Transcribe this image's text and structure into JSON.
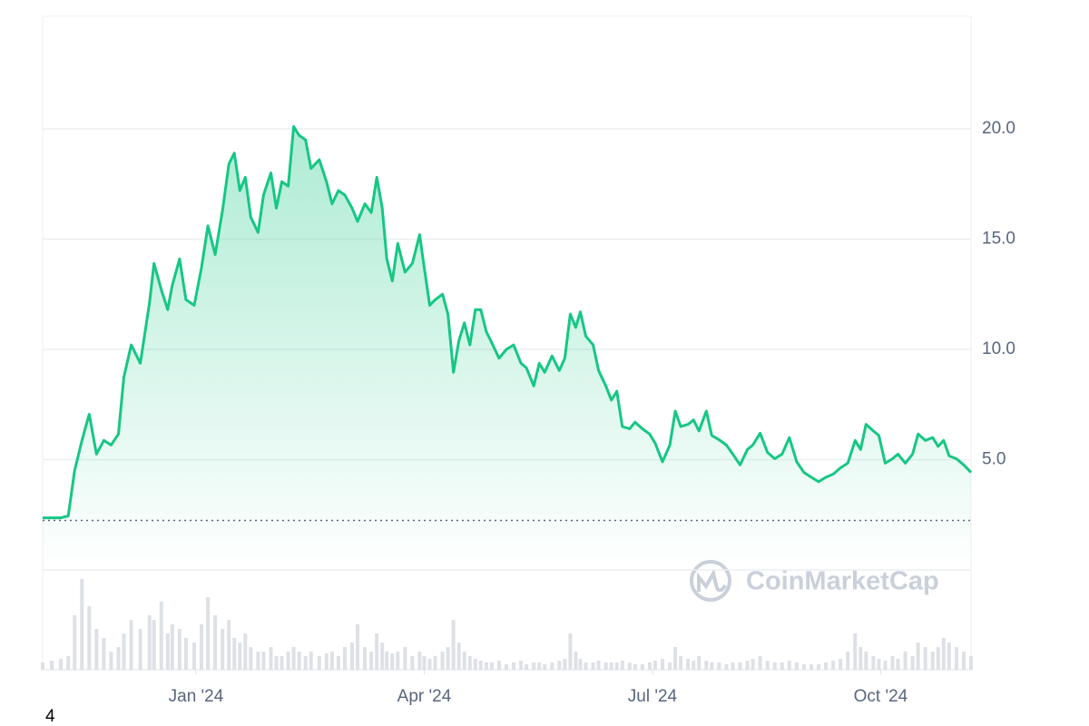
{
  "chart_data": {
    "type": "line",
    "watermark": "CoinMarketCap",
    "note": "4",
    "x": [
      2023.832,
      2023.842,
      2023.852,
      2023.86,
      2023.867,
      2023.875,
      2023.883,
      2023.891,
      2023.899,
      2023.907,
      2023.915,
      2023.921,
      2023.929,
      2023.939,
      2023.949,
      2023.954,
      2023.962,
      2023.969,
      2023.974,
      2023.982,
      2023.989,
      2023.998,
      2024.006,
      2024.013,
      2024.021,
      2024.029,
      2024.036,
      2024.042,
      2024.048,
      2024.054,
      2024.06,
      2024.068,
      2024.074,
      2024.082,
      2024.088,
      2024.094,
      2024.101,
      2024.107,
      2024.113,
      2024.12,
      2024.126,
      2024.135,
      2024.143,
      2024.149,
      2024.156,
      2024.163,
      2024.171,
      2024.177,
      2024.185,
      2024.192,
      2024.198,
      2024.204,
      2024.209,
      2024.215,
      2024.221,
      2024.229,
      2024.237,
      2024.245,
      2024.25,
      2024.256,
      2024.262,
      2024.27,
      2024.276,
      2024.282,
      2024.288,
      2024.294,
      2024.3,
      2024.306,
      2024.312,
      2024.318,
      2024.324,
      2024.332,
      2024.34,
      2024.348,
      2024.356,
      2024.362,
      2024.37,
      2024.376,
      2024.382,
      2024.39,
      2024.398,
      2024.404,
      2024.41,
      2024.416,
      2024.421,
      2024.427,
      2024.435,
      2024.441,
      2024.449,
      2024.455,
      2024.461,
      2024.467,
      2024.475,
      2024.481,
      2024.489,
      2024.497,
      2024.503,
      2024.511,
      2024.519,
      2024.525,
      2024.531,
      2024.539,
      2024.545,
      2024.551,
      2024.559,
      2024.565,
      2024.573,
      2024.581,
      2024.588,
      2024.596,
      2024.604,
      2024.61,
      2024.618,
      2024.626,
      2024.634,
      2024.642,
      2024.65,
      2024.658,
      2024.666,
      2024.674,
      2024.682,
      2024.69,
      2024.698,
      2024.706,
      2024.714,
      2024.722,
      2024.728,
      2024.734,
      2024.742,
      2024.748,
      2024.755,
      2024.763,
      2024.769,
      2024.777,
      2024.785,
      2024.791,
      2024.799,
      2024.807,
      2024.813,
      2024.819,
      2024.825,
      2024.833,
      2024.841,
      2024.849
    ],
    "series": [
      {
        "color": "#16c784",
        "values": [
          2.36,
          2.36,
          2.36,
          2.45,
          4.5,
          5.87,
          7.06,
          5.25,
          5.87,
          5.66,
          6.16,
          8.75,
          10.2,
          9.37,
          12.1,
          13.9,
          12.7,
          11.8,
          12.9,
          14.1,
          12.25,
          12.0,
          13.7,
          15.6,
          14.3,
          16.3,
          18.4,
          18.9,
          17.2,
          17.8,
          16.0,
          15.3,
          17.0,
          18.0,
          16.4,
          17.6,
          17.4,
          20.1,
          19.7,
          19.5,
          18.2,
          18.6,
          17.6,
          16.6,
          17.2,
          17.0,
          16.4,
          15.8,
          16.6,
          16.2,
          17.8,
          16.4,
          14.1,
          13.1,
          14.8,
          13.5,
          13.9,
          15.2,
          13.7,
          12.0,
          12.25,
          12.5,
          11.6,
          8.96,
          10.4,
          11.2,
          10.2,
          11.8,
          11.8,
          10.8,
          10.3,
          9.6,
          10.0,
          10.2,
          9.37,
          9.16,
          8.34,
          9.37,
          8.96,
          9.7,
          9.04,
          9.6,
          11.6,
          11.0,
          11.7,
          10.6,
          10.2,
          9.04,
          8.34,
          7.7,
          8.1,
          6.5,
          6.4,
          6.7,
          6.4,
          6.16,
          5.74,
          4.9,
          5.66,
          7.2,
          6.5,
          6.6,
          6.8,
          6.3,
          7.2,
          6.1,
          5.9,
          5.66,
          5.25,
          4.76,
          5.46,
          5.66,
          6.2,
          5.33,
          5.04,
          5.25,
          6.0,
          4.9,
          4.42,
          4.2,
          4.0,
          4.2,
          4.34,
          4.63,
          4.84,
          5.87,
          5.46,
          6.6,
          6.3,
          6.1,
          4.84,
          5.04,
          5.25,
          4.84,
          5.25,
          6.16,
          5.87,
          6.0,
          5.6,
          5.87,
          5.17,
          5.04,
          4.76,
          4.42
        ]
      },
      {
        "color": "#dde1e6",
        "axis": "y2",
        "values": [
          8,
          10,
          12,
          15,
          60,
          100,
          70,
          45,
          35,
          20,
          25,
          40,
          55,
          45,
          60,
          55,
          75,
          40,
          50,
          45,
          35,
          30,
          50,
          80,
          60,
          45,
          55,
          35,
          30,
          40,
          25,
          20,
          20,
          25,
          15,
          15,
          20,
          25,
          20,
          15,
          20,
          15,
          18,
          20,
          15,
          25,
          30,
          50,
          25,
          20,
          40,
          30,
          20,
          18,
          20,
          25,
          15,
          20,
          15,
          12,
          15,
          20,
          25,
          55,
          30,
          20,
          15,
          12,
          10,
          8,
          8,
          10,
          6,
          8,
          10,
          6,
          8,
          8,
          6,
          8,
          10,
          12,
          40,
          20,
          12,
          8,
          8,
          10,
          8,
          8,
          8,
          10,
          8,
          6,
          6,
          8,
          10,
          12,
          8,
          25,
          15,
          12,
          10,
          15,
          10,
          8,
          8,
          6,
          8,
          8,
          10,
          12,
          15,
          10,
          8,
          8,
          10,
          8,
          6,
          6,
          6,
          8,
          10,
          12,
          20,
          40,
          25,
          20,
          15,
          12,
          10,
          15,
          12,
          20,
          15,
          30,
          25,
          20,
          25,
          35,
          30,
          25,
          20,
          15
        ]
      }
    ],
    "reference_line": 2.24,
    "xlim": [
      2023.832,
      2024.849
    ],
    "xticks": [
      {
        "value": 2024.0,
        "label": "Jan '24"
      },
      {
        "value": 2024.25,
        "label": "Apr '24"
      },
      {
        "value": 2024.5,
        "label": "Jul '24"
      },
      {
        "value": 2024.75,
        "label": "Oct '24"
      }
    ],
    "ylim": [
      0,
      25.1
    ],
    "yticks": [
      {
        "value": 0,
        "label": ""
      },
      {
        "value": 5,
        "label": "5.0"
      },
      {
        "value": 10,
        "label": "10.0"
      },
      {
        "value": 15,
        "label": "15.0"
      },
      {
        "value": 20,
        "label": "20.0"
      }
    ],
    "y2lim": [
      0,
      110
    ],
    "grid": true
  }
}
